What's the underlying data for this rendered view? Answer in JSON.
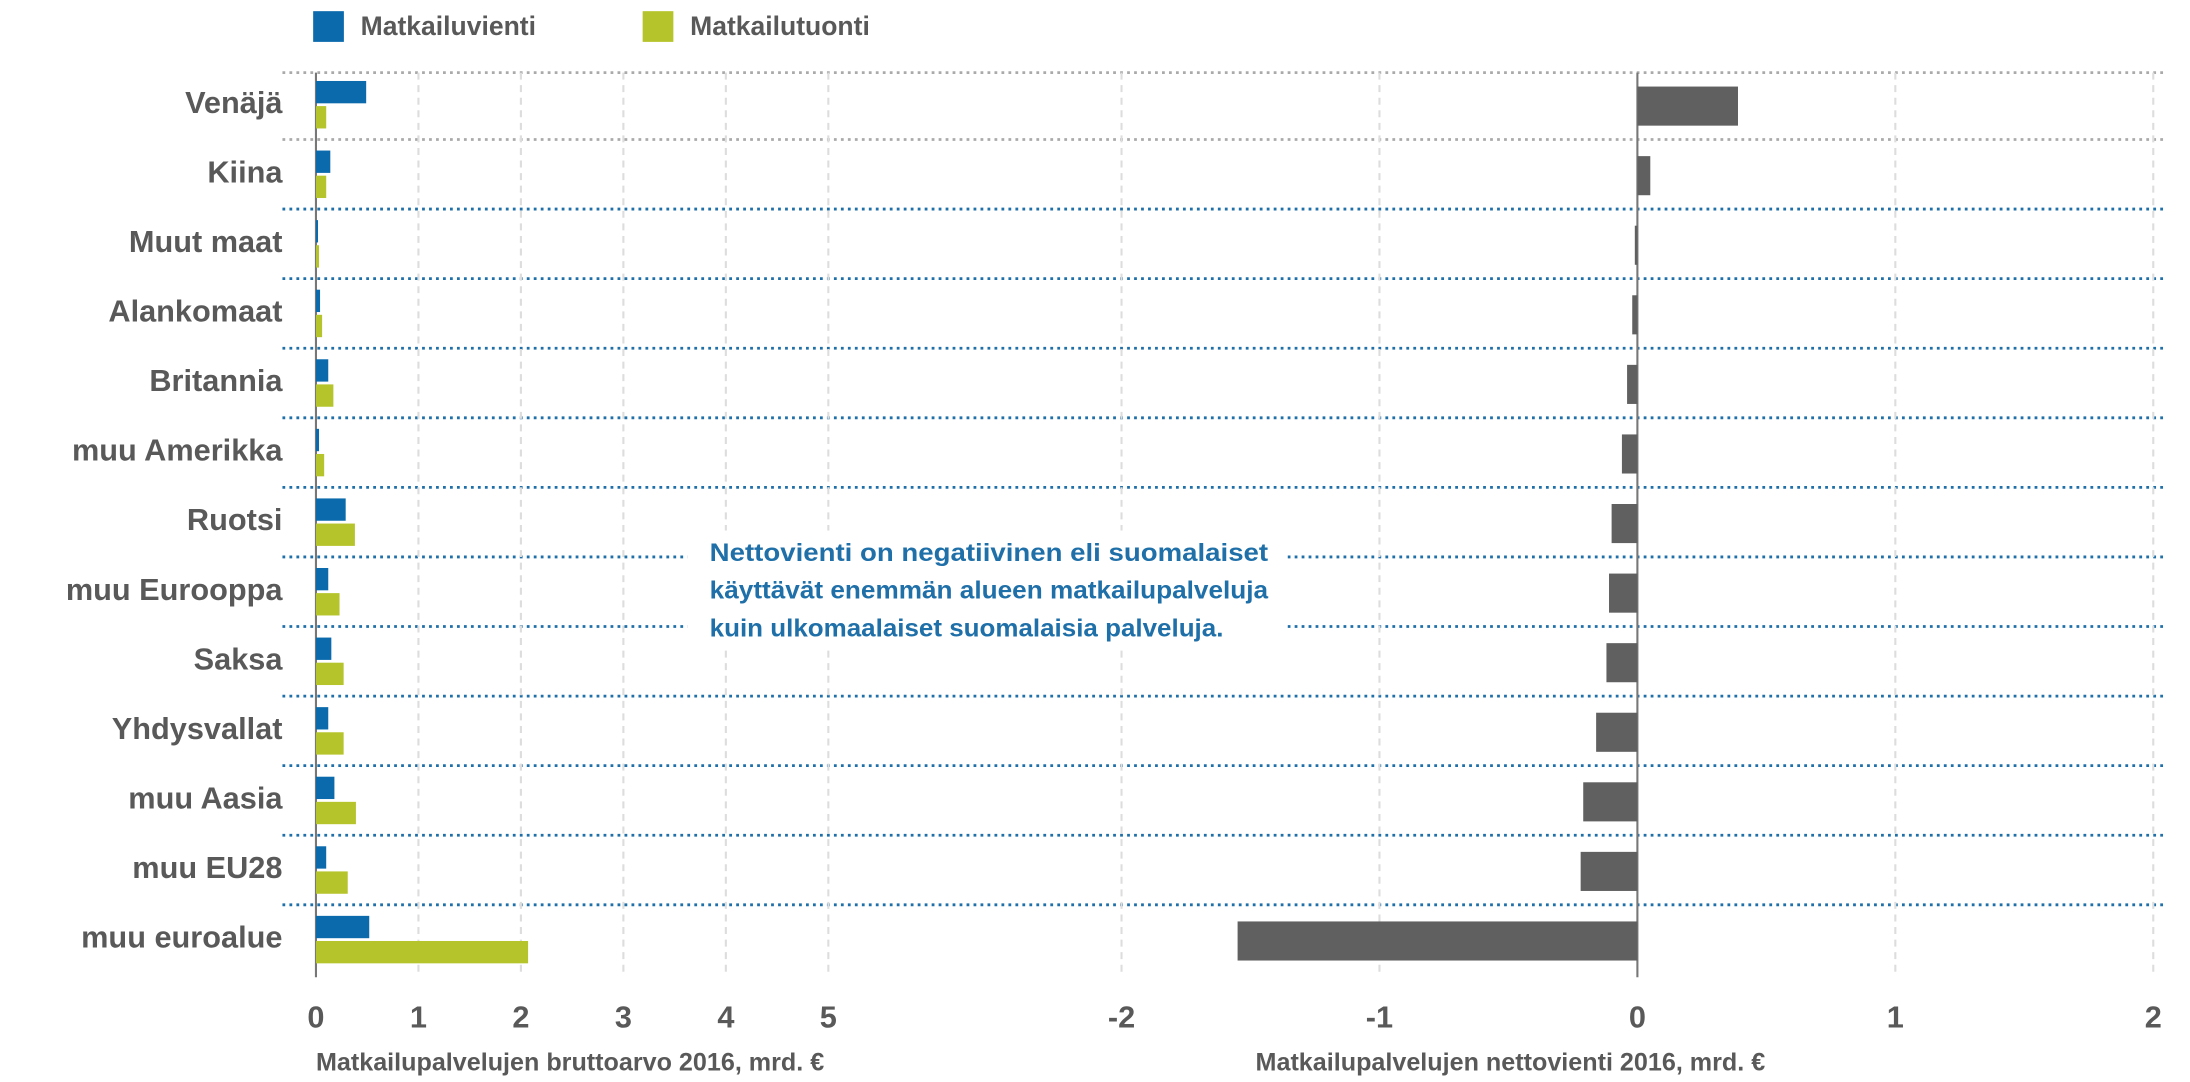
{
  "chart_data": [
    {
      "type": "hbar",
      "xlabel": "Matkailupalvelujen bruttoarvo 2016, mrd. €",
      "categories": [
        "Venäjä",
        "Kiina",
        "Muut maat",
        "Alankomaat",
        "Britannia",
        "muu Amerikka",
        "Ruotsi",
        "muu Eurooppa",
        "Saksa",
        "Yhdysvallat",
        "muu Aasia",
        "muu EU28",
        "muu euroalue"
      ],
      "series": [
        {
          "name": "Matkailuvienti",
          "color": "#0a6aac",
          "values": [
            0.49,
            0.14,
            0.02,
            0.04,
            0.12,
            0.03,
            0.29,
            0.12,
            0.15,
            0.12,
            0.18,
            0.1,
            0.52
          ]
        },
        {
          "name": "Matkailutuonti",
          "color": "#b5c42a",
          "values": [
            0.1,
            0.1,
            0.03,
            0.06,
            0.17,
            0.08,
            0.38,
            0.23,
            0.27,
            0.27,
            0.39,
            0.31,
            2.07
          ]
        }
      ],
      "xlim": [
        0,
        5
      ],
      "xticks": [
        0,
        1,
        2,
        3,
        4,
        5
      ],
      "grid": true
    },
    {
      "type": "hbar",
      "xlabel": "Matkailupalvelujen nettovienti 2016, mrd. €",
      "series": [
        {
          "color": "#606060",
          "values": [
            0.39,
            0.05,
            -0.01,
            -0.02,
            -0.04,
            -0.06,
            -0.1,
            -0.11,
            -0.12,
            -0.16,
            -0.21,
            -0.22,
            -1.55
          ]
        }
      ],
      "xlim": [
        -2,
        2
      ],
      "xticks": [
        -2,
        -1,
        0,
        1,
        2
      ],
      "grid": true,
      "annotation": [
        "Nettovienti on negatiivinen eli suomalaiset",
        "käyttävät enemmän alueen matkailupalveluja",
        "kuin ulkomaalaiset suomalaisia palveluja."
      ]
    }
  ]
}
